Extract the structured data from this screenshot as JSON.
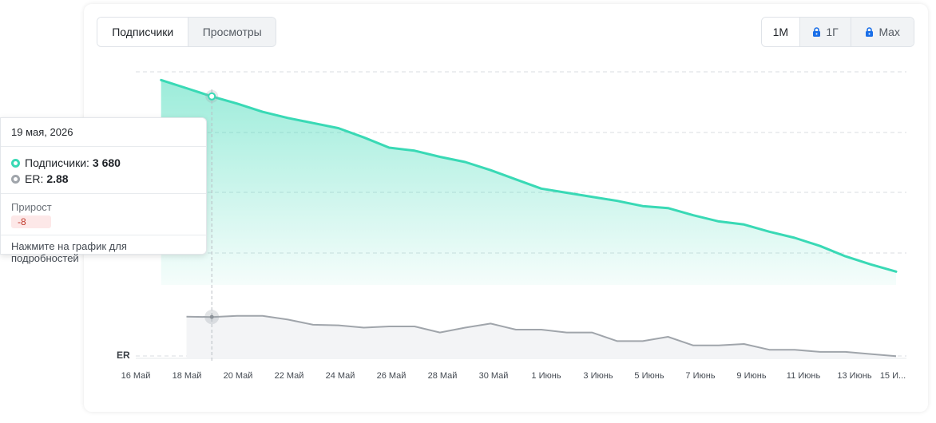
{
  "header": {
    "metric_tabs": [
      {
        "label": "Подписчики",
        "active": true
      },
      {
        "label": "Просмотры",
        "active": false
      }
    ],
    "period_tabs": [
      {
        "label": "1M",
        "active": true,
        "locked": false
      },
      {
        "label": "1Г",
        "active": false,
        "locked": true
      },
      {
        "label": "Max",
        "active": false,
        "locked": true
      }
    ]
  },
  "tooltip": {
    "date": "19 мая, 2026",
    "subscribers_label": "Подписчики:",
    "subscribers_value": "3 680",
    "er_label": "ER:",
    "er_value": "2.88",
    "gain_label": "Прирост",
    "gain_value": "-8",
    "hint": "Нажмите на график для подробностей"
  },
  "colors": {
    "subscribers": "#39d9b5",
    "er": "#a0a5ab",
    "lock": "#1a6fe8"
  },
  "chart_data": {
    "type": "area",
    "x_tick_labels": [
      "16 Май",
      "18 Май",
      "20 Май",
      "22 Май",
      "24 Май",
      "26 Май",
      "28 Май",
      "30 Май",
      "1 Июнь",
      "3 Июнь",
      "5 Июнь",
      "7 Июнь",
      "9 Июнь",
      "11 Июнь",
      "13 Июнь",
      "15 И..."
    ],
    "er_axis_label": "ER",
    "grid": true,
    "highlighted_date": "19 мая, 2026",
    "series": [
      {
        "name": "Подписчики",
        "x": [
          "2026-05-17",
          "2026-05-18",
          "2026-05-19",
          "2026-05-20",
          "2026-05-21",
          "2026-05-22",
          "2026-05-23",
          "2026-05-24",
          "2026-05-25",
          "2026-05-26",
          "2026-05-27",
          "2026-05-28",
          "2026-05-29",
          "2026-05-30",
          "2026-05-31",
          "2026-06-01",
          "2026-06-02",
          "2026-06-03",
          "2026-06-04",
          "2026-06-05",
          "2026-06-06",
          "2026-06-07",
          "2026-06-08",
          "2026-06-09",
          "2026-06-10",
          "2026-06-11",
          "2026-06-12",
          "2026-06-13",
          "2026-06-14",
          "2026-06-15"
        ],
        "values": [
          3696,
          3688,
          3680,
          3673,
          3665,
          3659,
          3654,
          3649,
          3640,
          3630,
          3627,
          3621,
          3616,
          3608,
          3599,
          3590,
          3586,
          3582,
          3578,
          3573,
          3571,
          3564,
          3558,
          3555,
          3548,
          3542,
          3534,
          3524,
          3516,
          3509
        ]
      },
      {
        "name": "ER",
        "x": [
          "2026-05-18",
          "2026-05-19",
          "2026-05-20",
          "2026-05-21",
          "2026-05-22",
          "2026-05-23",
          "2026-05-24",
          "2026-05-25",
          "2026-05-26",
          "2026-05-27",
          "2026-05-28",
          "2026-05-29",
          "2026-05-30",
          "2026-05-31",
          "2026-06-01",
          "2026-06-02",
          "2026-06-03",
          "2026-06-04",
          "2026-06-05",
          "2026-06-06",
          "2026-06-07",
          "2026-06-08",
          "2026-06-09",
          "2026-06-10",
          "2026-06-11",
          "2026-06-12",
          "2026-06-13",
          "2026-06-14",
          "2026-06-15"
        ],
        "values": [
          2.9,
          2.88,
          2.96,
          2.96,
          2.7,
          2.34,
          2.3,
          2.14,
          2.22,
          2.22,
          1.8,
          2.14,
          2.42,
          2.0,
          2.0,
          1.8,
          1.8,
          1.2,
          1.2,
          1.5,
          0.9,
          0.9,
          1.0,
          0.6,
          0.6,
          0.45,
          0.45,
          0.3,
          0.15
        ]
      }
    ]
  }
}
